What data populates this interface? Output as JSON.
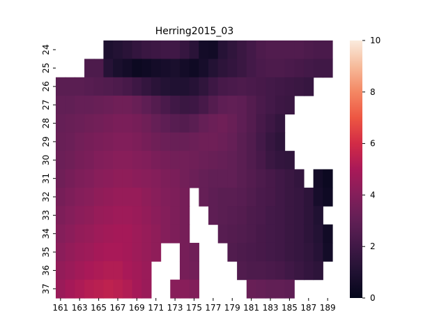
{
  "chart_data": {
    "type": "heatmap",
    "title": "Herring2015_03",
    "x": [
      161,
      162,
      163,
      164,
      165,
      166,
      167,
      168,
      169,
      170,
      171,
      172,
      173,
      174,
      175,
      176,
      177,
      178,
      179,
      180,
      181,
      182,
      183,
      184,
      185,
      186,
      187,
      188,
      189
    ],
    "y": [
      24,
      25,
      26,
      27,
      28,
      29,
      30,
      31,
      32,
      33,
      34,
      35,
      36,
      37
    ],
    "x_tick_labels": [
      "161",
      "163",
      "165",
      "167",
      "169",
      "171",
      "173",
      "175",
      "177",
      "179",
      "181",
      "183",
      "185",
      "187",
      "189"
    ],
    "y_tick_labels": [
      "24",
      "25",
      "26",
      "27",
      "28",
      "29",
      "30",
      "31",
      "32",
      "33",
      "34",
      "35",
      "36",
      "37"
    ],
    "colorbar": {
      "min": 0,
      "max": 10,
      "ticks": [
        "0",
        "2",
        "4",
        "6",
        "8",
        "10"
      ],
      "colormap": "rocket"
    },
    "values": [
      [
        null,
        null,
        null,
        null,
        null,
        0.9,
        1.1,
        1.3,
        1.6,
        1.8,
        1.9,
        2.0,
        2.0,
        1.7,
        1.3,
        0.6,
        0.5,
        1.2,
        1.5,
        1.8,
        2.1,
        2.4,
        2.5,
        2.5,
        2.5,
        2.5,
        2.4,
        2.3,
        2.3
      ],
      [
        null,
        null,
        null,
        2.4,
        2.4,
        1.2,
        0.8,
        0.6,
        0.3,
        0.4,
        0.6,
        0.7,
        0.8,
        0.6,
        0.4,
        0.7,
        1.1,
        1.4,
        1.6,
        1.8,
        2.1,
        2.3,
        2.4,
        2.4,
        2.3,
        2.2,
        2.1,
        2.0,
        2.0
      ],
      [
        2.8,
        2.8,
        2.8,
        2.7,
        2.6,
        2.5,
        2.4,
        2.2,
        1.9,
        1.6,
        1.3,
        1.1,
        1.0,
        1.0,
        1.2,
        1.5,
        1.9,
        2.2,
        2.3,
        2.4,
        2.3,
        2.2,
        2.1,
        2.0,
        1.9,
        1.8,
        1.7,
        null,
        null
      ],
      [
        3.0,
        3.0,
        3.1,
        3.1,
        3.2,
        3.3,
        3.4,
        3.4,
        3.2,
        2.9,
        2.6,
        2.3,
        2.0,
        1.8,
        1.9,
        2.2,
        2.6,
        2.9,
        3.0,
        2.9,
        2.6,
        2.3,
        2.1,
        1.9,
        1.8,
        null,
        null,
        null,
        null
      ],
      [
        3.1,
        3.2,
        3.3,
        3.4,
        3.5,
        3.6,
        3.7,
        3.7,
        3.6,
        3.4,
        3.1,
        2.9,
        2.7,
        2.6,
        2.8,
        3.1,
        3.3,
        3.4,
        3.2,
        2.9,
        2.6,
        2.2,
        1.9,
        1.6,
        null,
        null,
        null,
        null,
        null
      ],
      [
        3.2,
        3.3,
        3.5,
        3.6,
        3.7,
        3.8,
        3.9,
        3.9,
        3.8,
        3.6,
        3.4,
        3.3,
        3.2,
        3.2,
        3.3,
        3.4,
        3.4,
        3.3,
        3.1,
        2.8,
        2.5,
        2.1,
        1.7,
        1.4,
        null,
        null,
        null,
        null,
        null
      ],
      [
        3.3,
        3.4,
        3.6,
        3.7,
        3.9,
        4.0,
        4.1,
        4.1,
        4.0,
        3.9,
        3.7,
        3.6,
        3.5,
        3.5,
        3.4,
        3.3,
        3.2,
        3.1,
        3.0,
        2.8,
        2.5,
        2.2,
        1.8,
        1.6,
        1.5,
        null,
        null,
        null,
        null
      ],
      [
        3.4,
        3.6,
        3.8,
        3.9,
        4.1,
        4.2,
        4.3,
        4.3,
        4.2,
        4.1,
        4.0,
        3.8,
        3.7,
        3.5,
        3.3,
        3.1,
        3.0,
        3.0,
        3.0,
        2.8,
        2.6,
        2.4,
        2.2,
        2.0,
        1.8,
        1.6,
        null,
        0.6,
        0.3
      ],
      [
        3.6,
        3.8,
        4.0,
        4.1,
        4.3,
        4.4,
        4.5,
        4.5,
        4.5,
        4.3,
        4.1,
        3.9,
        3.8,
        3.6,
        null,
        3.1,
        2.9,
        2.8,
        2.8,
        2.7,
        2.5,
        2.3,
        2.2,
        2.0,
        1.8,
        1.7,
        1.4,
        0.7,
        0.4
      ],
      [
        3.8,
        4.0,
        4.2,
        4.3,
        4.5,
        4.6,
        4.7,
        4.7,
        4.6,
        4.4,
        4.2,
        4.0,
        3.8,
        3.6,
        null,
        null,
        2.9,
        2.8,
        2.7,
        2.6,
        2.4,
        2.3,
        2.1,
        2.0,
        1.8,
        1.7,
        1.4,
        1.0,
        null
      ],
      [
        4.0,
        4.2,
        4.4,
        4.5,
        4.7,
        4.8,
        4.9,
        4.9,
        4.7,
        4.5,
        4.3,
        4.0,
        3.8,
        3.6,
        null,
        null,
        null,
        2.7,
        2.6,
        2.5,
        2.4,
        2.2,
        2.1,
        2.0,
        1.8,
        1.7,
        1.4,
        1.1,
        0.5
      ],
      [
        4.2,
        4.4,
        4.6,
        4.7,
        4.9,
        5.0,
        5.0,
        4.9,
        4.7,
        4.5,
        4.3,
        null,
        null,
        3.6,
        3.4,
        null,
        null,
        null,
        2.5,
        2.4,
        2.3,
        2.2,
        2.1,
        2.0,
        1.8,
        1.7,
        1.5,
        1.2,
        0.6
      ],
      [
        4.4,
        4.6,
        4.8,
        5.0,
        5.1,
        5.2,
        5.2,
        5.0,
        4.8,
        4.6,
        null,
        null,
        null,
        3.6,
        3.5,
        null,
        null,
        null,
        null,
        2.5,
        2.4,
        2.4,
        2.3,
        2.2,
        2.0,
        1.8,
        1.6,
        1.4,
        null
      ],
      [
        4.6,
        4.9,
        5.1,
        5.3,
        5.4,
        5.5,
        5.4,
        5.2,
        4.9,
        4.6,
        null,
        null,
        4.1,
        4.1,
        3.9,
        null,
        null,
        null,
        null,
        null,
        3.2,
        3.1,
        3.0,
        3.0,
        2.9,
        null,
        null,
        null,
        null
      ]
    ]
  }
}
